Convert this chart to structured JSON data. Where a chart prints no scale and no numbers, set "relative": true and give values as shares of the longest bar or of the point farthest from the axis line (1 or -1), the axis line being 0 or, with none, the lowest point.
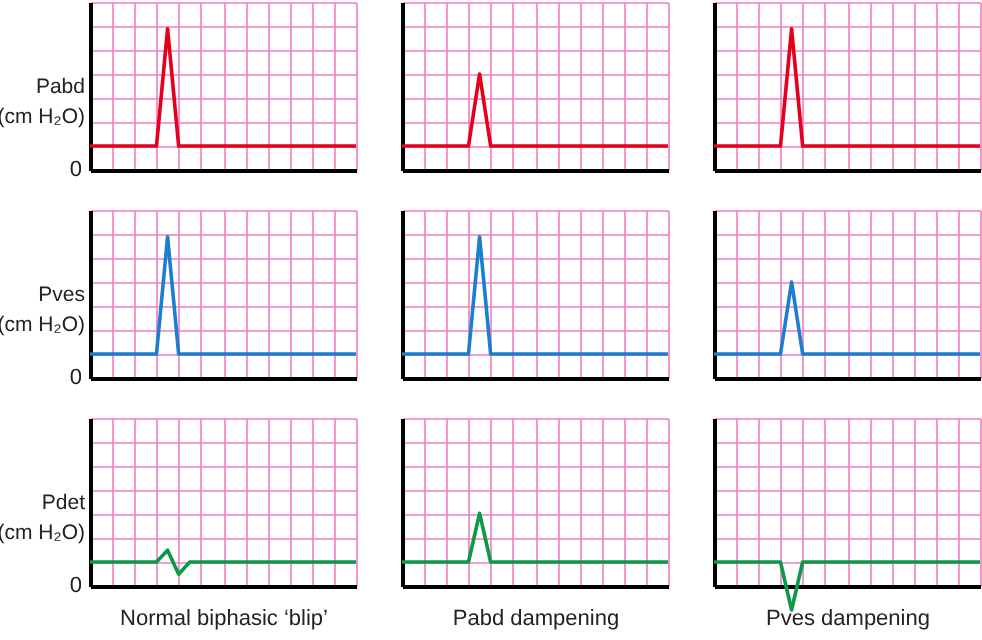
{
  "chart_data": [
    {
      "type": "line",
      "relative": true,
      "ylabel": "Pabd (cm H₂O)",
      "annotations": [
        "0"
      ],
      "tick_labels": false,
      "grid": true,
      "color": "#e2001a",
      "categories": [
        null,
        null,
        null,
        null,
        null,
        null,
        null,
        null,
        null,
        null,
        null,
        null,
        null,
        null,
        null,
        null,
        null,
        null,
        null,
        null,
        null,
        null,
        null,
        null,
        null
      ],
      "values": [
        0.17,
        0.17,
        0.17,
        0.17,
        0.17,
        0.17,
        0.17,
        1,
        0.17,
        0.17,
        0.17,
        0.17,
        0.17,
        0.17,
        0.17,
        0.17,
        0.17,
        0.17,
        0.17,
        0.17,
        0.17,
        0.17,
        0.17,
        0.17,
        0.17
      ]
    },
    {
      "type": "line",
      "relative": true,
      "tick_labels": false,
      "grid": true,
      "color": "#e2001a",
      "categories": [
        null,
        null,
        null,
        null,
        null,
        null,
        null,
        null,
        null,
        null,
        null,
        null,
        null,
        null,
        null,
        null,
        null,
        null,
        null,
        null,
        null,
        null,
        null,
        null,
        null
      ],
      "values": [
        0.25,
        0.25,
        0.25,
        0.25,
        0.25,
        0.25,
        0.25,
        1,
        0.25,
        0.25,
        0.25,
        0.25,
        0.25,
        0.25,
        0.25,
        0.25,
        0.25,
        0.25,
        0.25,
        0.25,
        0.25,
        0.25,
        0.25,
        0.25,
        0.25
      ]
    },
    {
      "type": "line",
      "relative": true,
      "tick_labels": false,
      "grid": true,
      "color": "#e2001a",
      "categories": [
        null,
        null,
        null,
        null,
        null,
        null,
        null,
        null,
        null,
        null,
        null,
        null,
        null,
        null,
        null,
        null,
        null,
        null,
        null,
        null,
        null,
        null,
        null,
        null,
        null
      ],
      "values": [
        0.17,
        0.17,
        0.17,
        0.17,
        0.17,
        0.17,
        0.17,
        1,
        0.17,
        0.17,
        0.17,
        0.17,
        0.17,
        0.17,
        0.17,
        0.17,
        0.17,
        0.17,
        0.17,
        0.17,
        0.17,
        0.17,
        0.17,
        0.17,
        0.17
      ]
    },
    {
      "type": "line",
      "relative": true,
      "ylabel": "Pves (cm H₂O)",
      "annotations": [
        "0"
      ],
      "tick_labels": false,
      "grid": true,
      "color": "#1a7fd0",
      "categories": [
        null,
        null,
        null,
        null,
        null,
        null,
        null,
        null,
        null,
        null,
        null,
        null,
        null,
        null,
        null,
        null,
        null,
        null,
        null,
        null,
        null,
        null,
        null,
        null,
        null
      ],
      "values": [
        0.17,
        0.17,
        0.17,
        0.17,
        0.17,
        0.17,
        0.17,
        1,
        0.17,
        0.17,
        0.17,
        0.17,
        0.17,
        0.17,
        0.17,
        0.17,
        0.17,
        0.17,
        0.17,
        0.17,
        0.17,
        0.17,
        0.17,
        0.17,
        0.17
      ]
    },
    {
      "type": "line",
      "relative": true,
      "tick_labels": false,
      "grid": true,
      "color": "#1a7fd0",
      "categories": [
        null,
        null,
        null,
        null,
        null,
        null,
        null,
        null,
        null,
        null,
        null,
        null,
        null,
        null,
        null,
        null,
        null,
        null,
        null,
        null,
        null,
        null,
        null,
        null,
        null
      ],
      "values": [
        0.17,
        0.17,
        0.17,
        0.17,
        0.17,
        0.17,
        0.17,
        1,
        0.17,
        0.17,
        0.17,
        0.17,
        0.17,
        0.17,
        0.17,
        0.17,
        0.17,
        0.17,
        0.17,
        0.17,
        0.17,
        0.17,
        0.17,
        0.17,
        0.17
      ]
    },
    {
      "type": "line",
      "relative": true,
      "tick_labels": false,
      "grid": true,
      "color": "#1a7fd0",
      "categories": [
        null,
        null,
        null,
        null,
        null,
        null,
        null,
        null,
        null,
        null,
        null,
        null,
        null,
        null,
        null,
        null,
        null,
        null,
        null,
        null,
        null,
        null,
        null,
        null,
        null
      ],
      "values": [
        0.25,
        0.25,
        0.25,
        0.25,
        0.25,
        0.25,
        0.25,
        1,
        0.25,
        0.25,
        0.25,
        0.25,
        0.25,
        0.25,
        0.25,
        0.25,
        0.25,
        0.25,
        0.25,
        0.25,
        0.25,
        0.25,
        0.25,
        0.25,
        0.25
      ]
    },
    {
      "type": "line",
      "relative": true,
      "ylabel": "Pdet (cm H₂O)",
      "annotations": [
        "0"
      ],
      "xlabel": "Normal biphasic ‘blip’",
      "tick_labels": false,
      "grid": true,
      "color": "#0b9a48",
      "categories": [
        null,
        null,
        null,
        null,
        null,
        null,
        null,
        null,
        null,
        null,
        null,
        null,
        null,
        null,
        null,
        null,
        null,
        null,
        null,
        null,
        null,
        null,
        null,
        null,
        null
      ],
      "values": [
        0.67,
        0.67,
        0.67,
        0.67,
        0.67,
        0.67,
        0.67,
        1,
        0.33,
        0.67,
        0.67,
        0.67,
        0.67,
        0.67,
        0.67,
        0.67,
        0.67,
        0.67,
        0.67,
        0.67,
        0.67,
        0.67,
        0.67,
        0.67,
        0.67
      ]
    },
    {
      "type": "line",
      "relative": true,
      "xlabel": "Pabd dampening",
      "tick_labels": false,
      "grid": true,
      "color": "#0b9a48",
      "categories": [
        null,
        null,
        null,
        null,
        null,
        null,
        null,
        null,
        null,
        null,
        null,
        null,
        null,
        null,
        null,
        null,
        null,
        null,
        null,
        null,
        null,
        null,
        null,
        null,
        null
      ],
      "values": [
        0.33,
        0.33,
        0.33,
        0.33,
        0.33,
        0.33,
        0.33,
        1,
        0.33,
        0.33,
        0.33,
        0.33,
        0.33,
        0.33,
        0.33,
        0.33,
        0.33,
        0.33,
        0.33,
        0.33,
        0.33,
        0.33,
        0.33,
        0.33,
        0.33
      ]
    },
    {
      "type": "line",
      "relative": true,
      "xlabel": "Pves dampening",
      "tick_labels": false,
      "grid": true,
      "color": "#0b9a48",
      "categories": [
        null,
        null,
        null,
        null,
        null,
        null,
        null,
        null,
        null,
        null,
        null,
        null,
        null,
        null,
        null,
        null,
        null,
        null,
        null,
        null,
        null,
        null,
        null,
        null,
        null
      ],
      "values": [
        1,
        1,
        1,
        1,
        1,
        1,
        1,
        -1,
        1,
        1,
        1,
        1,
        1,
        1,
        1,
        1,
        1,
        1,
        1,
        1,
        1,
        1,
        1,
        1,
        1
      ]
    }
  ]
}
